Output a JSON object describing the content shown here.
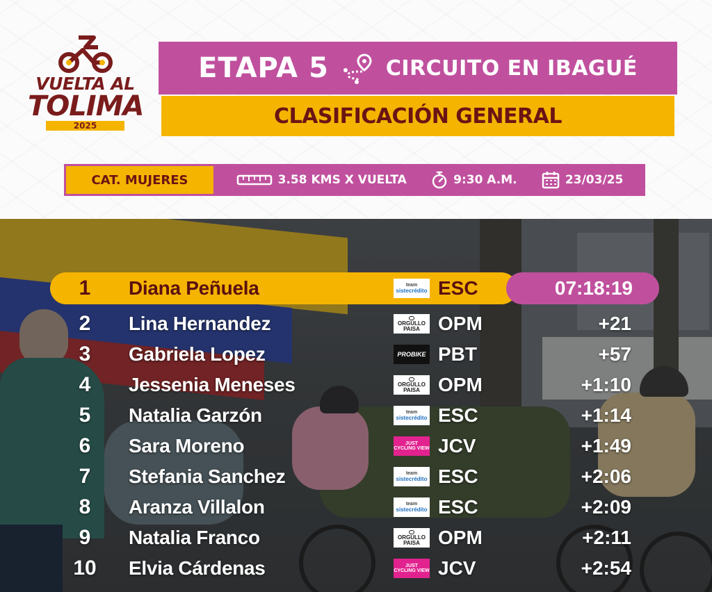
{
  "logo": {
    "line1": "VUELTA AL",
    "line2": "TOLIMA",
    "year": "2025"
  },
  "header": {
    "stage": "ETAPA 5",
    "route_icon": "route-pin-icon",
    "route": "CIRCUITO EN IBAGUÉ",
    "classification": "CLASIFICACIÓN GENERAL"
  },
  "info": {
    "category": "CAT. MUJERES",
    "distance_icon": "ruler-icon",
    "distance": "3.58 KMS X VUELTA",
    "time_icon": "stopwatch-icon",
    "start_time": "9:30 A.M.",
    "date_icon": "calendar-icon",
    "date": "23/03/25"
  },
  "colors": {
    "magenta": "#c0509e",
    "yellow": "#f5b400",
    "maroon": "#6b1414"
  },
  "results": [
    {
      "pos": "1",
      "name": "Diana Peñuela",
      "team_logo": "sistecredito",
      "logo_text_a": "team",
      "logo_text_b": "sistecrédito",
      "code": "ESC",
      "time": "07:18:19"
    },
    {
      "pos": "2",
      "name": "Lina Hernandez",
      "team_logo": "orgullo",
      "logo_text_a": "ORGULLO",
      "logo_text_b": "PAISA",
      "code": "OPM",
      "time": "+21"
    },
    {
      "pos": "3",
      "name": "Gabriela Lopez",
      "team_logo": "probike",
      "logo_text_a": "PROBIKE",
      "logo_text_b": "",
      "code": "PBT",
      "time": "+57"
    },
    {
      "pos": "4",
      "name": "Jessenia Meneses",
      "team_logo": "orgullo",
      "logo_text_a": "ORGULLO",
      "logo_text_b": "PAISA",
      "code": "OPM",
      "time": "+1:10"
    },
    {
      "pos": "5",
      "name": "Natalia Garzón",
      "team_logo": "sistecredito",
      "logo_text_a": "team",
      "logo_text_b": "sistecrédito",
      "code": "ESC",
      "time": "+1:14"
    },
    {
      "pos": "6",
      "name": "Sara Moreno",
      "team_logo": "just",
      "logo_text_a": "JUST",
      "logo_text_b": "CYCLING VIEW",
      "code": "JCV",
      "time": "+1:49"
    },
    {
      "pos": "7",
      "name": "Stefania Sanchez",
      "team_logo": "sistecredito",
      "logo_text_a": "team",
      "logo_text_b": "sistecrédito",
      "code": "ESC",
      "time": "+2:06"
    },
    {
      "pos": "8",
      "name": "Aranza Villalon",
      "team_logo": "sistecredito",
      "logo_text_a": "team",
      "logo_text_b": "sistecrédito",
      "code": "ESC",
      "time": "+2:09"
    },
    {
      "pos": "9",
      "name": "Natalia Franco",
      "team_logo": "orgullo",
      "logo_text_a": "ORGULLO",
      "logo_text_b": "PAISA",
      "code": "OPM",
      "time": "+2:11"
    },
    {
      "pos": "10",
      "name": "Elvia Cárdenas",
      "team_logo": "just",
      "logo_text_a": "JUST",
      "logo_text_b": "CYCLING VIEW",
      "code": "JCV",
      "time": "+2:54"
    }
  ]
}
